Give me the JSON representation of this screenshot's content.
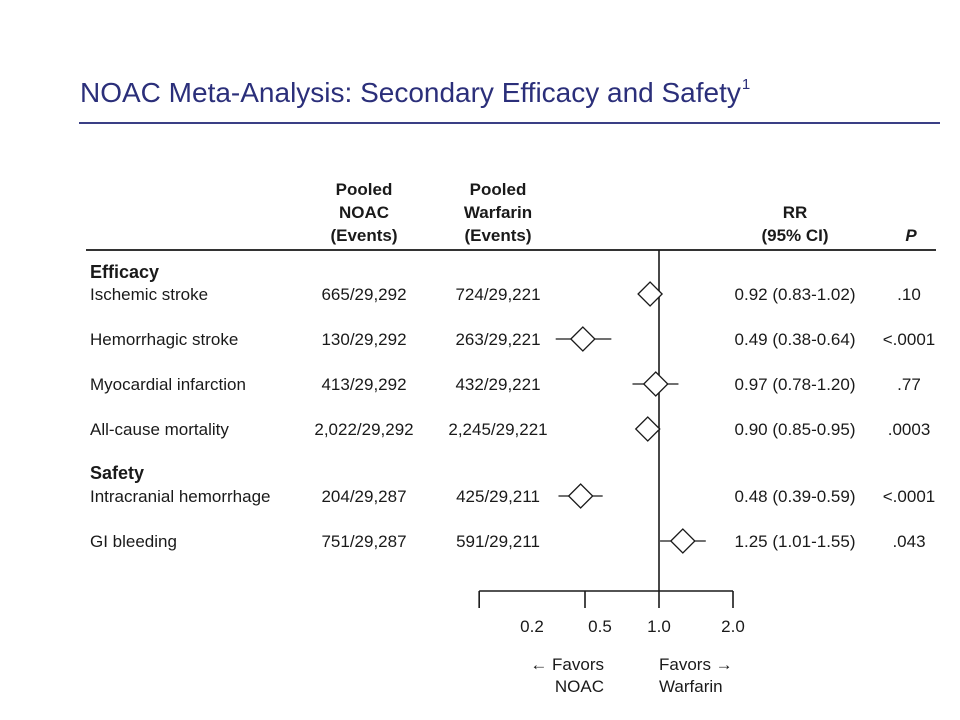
{
  "title": "NOAC Meta-Analysis: Secondary Efficacy and Safety",
  "title_superscript": "1",
  "headers": {
    "noac": [
      "Pooled",
      "NOAC",
      "(Events)"
    ],
    "warfarin": [
      "Pooled",
      "Warfarin",
      "(Events)"
    ],
    "rr": [
      "RR",
      "(95% CI)"
    ],
    "p": "P"
  },
  "sections": [
    {
      "name": "Efficacy",
      "rows": [
        {
          "label": "Ischemic stroke",
          "noac": "665/29,292",
          "warfarin": "724/29,221",
          "rr_text": "0.92 (0.83-1.02)",
          "p": ".10"
        },
        {
          "label": "Hemorrhagic stroke",
          "noac": "130/29,292",
          "warfarin": "263/29,221",
          "rr_text": "0.49 (0.38-0.64)",
          "p": "<.0001"
        },
        {
          "label": "Myocardial infarction",
          "noac": "413/29,292",
          "warfarin": "432/29,221",
          "rr_text": "0.97 (0.78-1.20)",
          "p": ".77"
        },
        {
          "label": "All-cause mortality",
          "noac": "2,022/29,292",
          "warfarin": "2,245/29,221",
          "rr_text": "0.90 (0.85-0.95)",
          "p": ".0003"
        }
      ]
    },
    {
      "name": "Safety",
      "rows": [
        {
          "label": "Intracranial hemorrhage",
          "noac": "204/29,287",
          "warfarin": "425/29,211",
          "rr_text": "0.48 (0.39-0.59)",
          "p": "<.0001"
        },
        {
          "label": "GI bleeding",
          "noac": "751/29,287",
          "warfarin": "591/29,211",
          "rr_text": "1.25 (1.01-1.55)",
          "p": ".043"
        }
      ]
    }
  ],
  "axis": {
    "ticks": [
      0.2,
      0.5,
      1.0,
      2.0
    ],
    "tick_labels": [
      "0.2",
      "0.5",
      "1.0",
      "2.0"
    ],
    "scale": "log",
    "reference": 1.0,
    "left_label": [
      "← Favors",
      "NOAC"
    ],
    "right_label": [
      "Favors →",
      "Warfarin"
    ]
  },
  "chart_data": {
    "type": "forest",
    "title": "NOAC Meta-Analysis: Secondary Efficacy and Safety",
    "xscale": "log",
    "xlim": [
      0.2,
      2.0
    ],
    "reference_line": 1.0,
    "points": [
      {
        "label": "Ischemic stroke",
        "rr": 0.92,
        "lo": 0.83,
        "hi": 1.02
      },
      {
        "label": "Hemorrhagic stroke",
        "rr": 0.49,
        "lo": 0.38,
        "hi": 0.64
      },
      {
        "label": "Myocardial infarction",
        "rr": 0.97,
        "lo": 0.78,
        "hi": 1.2
      },
      {
        "label": "All-cause mortality",
        "rr": 0.9,
        "lo": 0.85,
        "hi": 0.95
      },
      {
        "label": "Intracranial hemorrhage",
        "rr": 0.48,
        "lo": 0.39,
        "hi": 0.59
      },
      {
        "label": "GI bleeding",
        "rr": 1.25,
        "lo": 1.01,
        "hi": 1.55
      }
    ]
  },
  "colors": {
    "title": "#2b2f7a",
    "title_rule": "#3a3f85",
    "ink": "#1a1a1a"
  }
}
